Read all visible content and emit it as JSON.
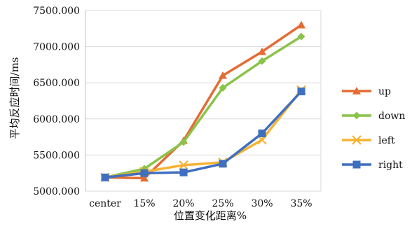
{
  "chart_data": {
    "type": "line",
    "title": "",
    "xlabel": "位置变化距离%",
    "ylabel": "平均反应时间/ms",
    "categories": [
      "center",
      "15%",
      "20%",
      "25%",
      "30%",
      "35%"
    ],
    "ylim": [
      5000,
      7500
    ],
    "yticks": [
      5000,
      5500,
      6000,
      6500,
      7000,
      7500
    ],
    "ytick_labels": [
      "5000.000",
      "5500.000",
      "6000.000",
      "6500.000",
      "7000.000",
      "7500.000"
    ],
    "grid": "horizontal",
    "legend_position": "right",
    "series": [
      {
        "name": "up",
        "color": "#E46C34",
        "marker": "triangle",
        "values": [
          5190,
          5180,
          5700,
          6600,
          6930,
          7300
        ]
      },
      {
        "name": "down",
        "color": "#8BC34A",
        "marker": "diamond",
        "values": [
          5190,
          5310,
          5680,
          6430,
          6800,
          7140
        ]
      },
      {
        "name": "left",
        "color": "#F5B335",
        "marker": "x",
        "values": [
          5190,
          5270,
          5360,
          5400,
          5710,
          6400
        ]
      },
      {
        "name": "right",
        "color": "#3F6FBF",
        "marker": "square",
        "values": [
          5190,
          5250,
          5260,
          5380,
          5800,
          6380
        ]
      }
    ]
  }
}
